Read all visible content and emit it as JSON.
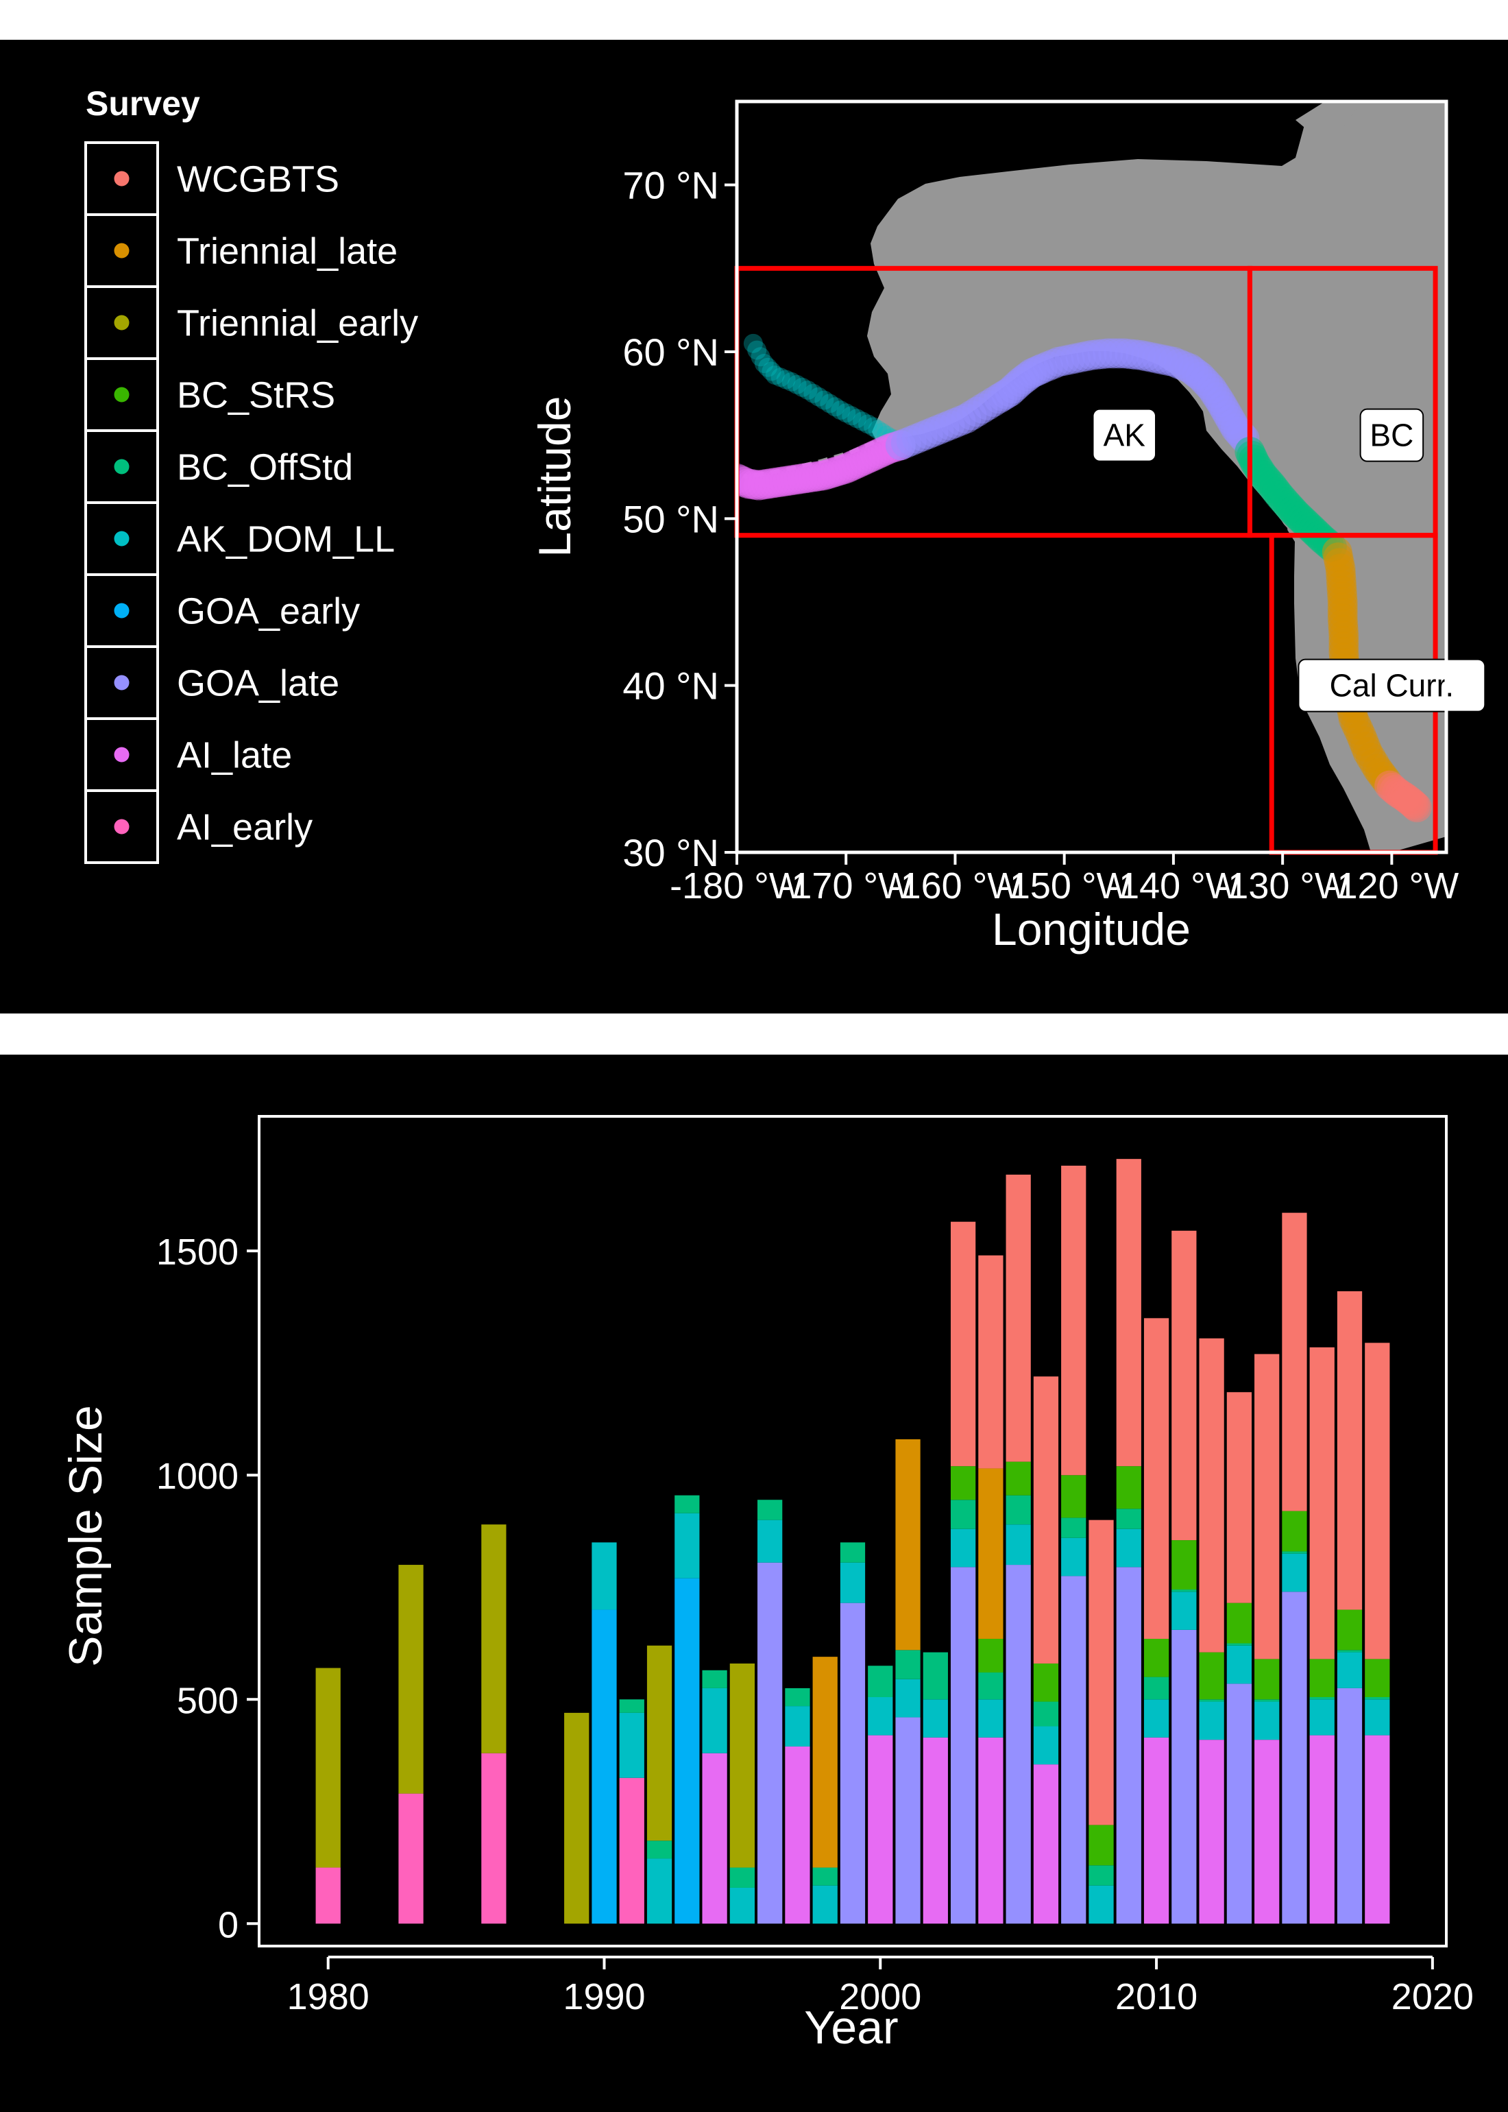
{
  "palette": {
    "WCGBTS": "#F8766D",
    "Triennial_late": "#D89000",
    "Triennial_early": "#A3A500",
    "BC_StRS": "#39B600",
    "BC_OffStd": "#00BF7D",
    "AK_DOM_LL": "#00BFC4",
    "GOA_early": "#00B0F6",
    "GOA_late": "#9590FF",
    "AI_late": "#E76BF3",
    "AI_early": "#FF62BC",
    "background": "#000000",
    "land": "#969696",
    "region_box": "#FF0000"
  },
  "chart_data": [
    {
      "type": "scatter",
      "subtype": "map",
      "xlabel": "Longitude",
      "ylabel": "Latitude",
      "xlim": [
        -180,
        -115
      ],
      "ylim": [
        30,
        75
      ],
      "xticks": [
        -180,
        -170,
        -160,
        -150,
        -140,
        -130,
        -120
      ],
      "xtick_labels": [
        "-180 °W",
        "-170 °W",
        "-160 °W",
        "-150 °W",
        "-140 °W",
        "-130 °W",
        "-120 °W"
      ],
      "yticks": [
        30,
        40,
        50,
        60,
        70
      ],
      "ytick_labels": [
        "30 °N",
        "40 °N",
        "50 °N",
        "60 °N",
        "70 °N"
      ],
      "legend": {
        "title": "Survey",
        "placement": "left",
        "entries": [
          "WCGBTS",
          "Triennial_late",
          "Triennial_early",
          "BC_StRS",
          "BC_OffStd",
          "AK_DOM_LL",
          "GOA_early",
          "GOA_late",
          "AI_late",
          "AI_early"
        ]
      },
      "regions": [
        {
          "label": "AK",
          "lon": [
            -180,
            -133
          ],
          "lat": [
            49,
            65
          ],
          "label_at": [
            -144.5,
            55
          ]
        },
        {
          "label": "BC",
          "lon": [
            -133,
            -116
          ],
          "lat": [
            49,
            65
          ],
          "label_at": [
            -120,
            55
          ]
        },
        {
          "label": "Cal Curr.",
          "lon": [
            -131,
            -116
          ],
          "lat": [
            30,
            49
          ],
          "label_at": [
            -120,
            40
          ]
        }
      ],
      "tracks": [
        {
          "survey": "AK_DOM_LL",
          "points": [
            [
              -178.5,
              60.5
            ],
            [
              -177.5,
              59.3
            ],
            [
              -176.5,
              58.6
            ],
            [
              -175,
              58.2
            ],
            [
              -173.5,
              57.7
            ],
            [
              -172,
              57.1
            ],
            [
              -170.5,
              56.5
            ],
            [
              -169,
              56.0
            ],
            [
              -167.5,
              55.5
            ],
            [
              -166.3,
              55.0
            ],
            [
              -165,
              54.5
            ]
          ]
        },
        {
          "survey": "AI_late",
          "points": [
            [
              -180,
              52.4
            ],
            [
              -179,
              52.1
            ],
            [
              -178,
              52.0
            ],
            [
              -177,
              52.1
            ],
            [
              -176,
              52.2
            ],
            [
              -175,
              52.3
            ],
            [
              -174,
              52.4
            ],
            [
              -173,
              52.5
            ],
            [
              -172,
              52.6
            ],
            [
              -171,
              52.8
            ],
            [
              -170,
              53.0
            ],
            [
              -169,
              53.3
            ],
            [
              -168,
              53.6
            ],
            [
              -167,
              53.9
            ],
            [
              -166,
              54.2
            ],
            [
              -165,
              54.4
            ]
          ]
        },
        {
          "survey": "GOA_late",
          "points": [
            [
              -165,
              54.4
            ],
            [
              -163.5,
              54.8
            ],
            [
              -162,
              55.2
            ],
            [
              -160.5,
              55.6
            ],
            [
              -159,
              56.0
            ],
            [
              -157.5,
              56.6
            ],
            [
              -156,
              57.2
            ],
            [
              -155,
              57.6
            ],
            [
              -154,
              58.2
            ],
            [
              -153,
              58.7
            ],
            [
              -152,
              59.0
            ],
            [
              -150.5,
              59.4
            ],
            [
              -149,
              59.6
            ],
            [
              -147.5,
              59.8
            ],
            [
              -146,
              59.9
            ],
            [
              -144.5,
              59.9
            ],
            [
              -143,
              59.8
            ],
            [
              -141.5,
              59.6
            ],
            [
              -140,
              59.4
            ],
            [
              -138.5,
              59.0
            ],
            [
              -137.5,
              58.5
            ],
            [
              -136.5,
              57.8
            ],
            [
              -135.7,
              57.0
            ],
            [
              -135,
              56.2
            ],
            [
              -134.3,
              55.4
            ],
            [
              -133.5,
              54.8
            ]
          ]
        },
        {
          "survey": "BC_OffStd",
          "points": [
            [
              -133,
              54.0
            ],
            [
              -132.5,
              53.3
            ],
            [
              -131.8,
              52.6
            ],
            [
              -131,
              52.0
            ],
            [
              -130.3,
              51.4
            ],
            [
              -129.5,
              50.8
            ],
            [
              -128.8,
              50.3
            ],
            [
              -128,
              49.8
            ],
            [
              -127.2,
              49.3
            ],
            [
              -126.4,
              48.8
            ],
            [
              -125.5,
              48.3
            ]
          ]
        },
        {
          "survey": "Triennial_late",
          "points": [
            [
              -125,
              48.0
            ],
            [
              -124.7,
              47.0
            ],
            [
              -124.6,
              46.0
            ],
            [
              -124.5,
              45.0
            ],
            [
              -124.5,
              44.0
            ],
            [
              -124.4,
              43.0
            ],
            [
              -124.4,
              42.0
            ],
            [
              -124.3,
              41.0
            ],
            [
              -124.2,
              40.0
            ],
            [
              -123.8,
              39.0
            ],
            [
              -123.5,
              38.0
            ],
            [
              -122.8,
              37.0
            ],
            [
              -122.2,
              36.0
            ],
            [
              -121.3,
              35.0
            ],
            [
              -120.5,
              34.3
            ]
          ]
        },
        {
          "survey": "WCGBTS",
          "points": [
            [
              -120.2,
              34.0
            ],
            [
              -119.5,
              33.6
            ],
            [
              -118.8,
              33.3
            ],
            [
              -118.2,
              33.0
            ],
            [
              -117.7,
              32.7
            ]
          ]
        }
      ]
    },
    {
      "type": "bar",
      "stacked": true,
      "xlabel": "Year",
      "ylabel": "Sample Size",
      "xlim": [
        1977.5,
        2020.5
      ],
      "ylim": [
        -50,
        1800
      ],
      "xticks": [
        1980,
        1990,
        2000,
        2010,
        2020
      ],
      "yticks": [
        0,
        500,
        1000,
        1500
      ],
      "stack_order": [
        "AI_early",
        "AI_late",
        "GOA_late",
        "GOA_early",
        "AK_DOM_LL",
        "BC_OffStd",
        "BC_StRS",
        "Triennial_early",
        "Triennial_late",
        "WCGBTS"
      ],
      "bars": [
        {
          "year": 1980,
          "AI_early": 125,
          "Triennial_early": 445
        },
        {
          "year": 1983,
          "AI_early": 290,
          "Triennial_early": 510
        },
        {
          "year": 1986,
          "AI_early": 380,
          "Triennial_early": 510
        },
        {
          "year": 1989,
          "Triennial_early": 470
        },
        {
          "year": 1990,
          "GOA_early": 700,
          "AK_DOM_LL": 150
        },
        {
          "year": 1991,
          "AI_early": 325,
          "AK_DOM_LL": 145,
          "BC_OffStd": 30
        },
        {
          "year": 1992,
          "AK_DOM_LL": 145,
          "BC_OffStd": 40,
          "Triennial_early": 435
        },
        {
          "year": 1993,
          "GOA_early": 770,
          "AK_DOM_LL": 145,
          "BC_OffStd": 40
        },
        {
          "year": 1994,
          "AI_late": 380,
          "AK_DOM_LL": 145,
          "BC_OffStd": 40
        },
        {
          "year": 1995,
          "AK_DOM_LL": 80,
          "BC_OffStd": 45,
          "Triennial_early": 455
        },
        {
          "year": 1996,
          "GOA_late": 805,
          "AK_DOM_LL": 95,
          "BC_OffStd": 45
        },
        {
          "year": 1997,
          "AI_late": 395,
          "AK_DOM_LL": 90,
          "BC_OffStd": 40
        },
        {
          "year": 1998,
          "AK_DOM_LL": 85,
          "BC_OffStd": 40,
          "Triennial_late": 470
        },
        {
          "year": 1999,
          "GOA_late": 715,
          "AK_DOM_LL": 90,
          "BC_OffStd": 45
        },
        {
          "year": 2000,
          "AI_late": 420,
          "AK_DOM_LL": 85,
          "BC_OffStd": 70
        },
        {
          "year": 2001,
          "GOA_late": 460,
          "AK_DOM_LL": 85,
          "BC_OffStd": 65,
          "Triennial_late": 470
        },
        {
          "year": 2002,
          "AI_late": 415,
          "AK_DOM_LL": 85,
          "BC_OffStd": 105
        },
        {
          "year": 2003,
          "GOA_late": 795,
          "AK_DOM_LL": 85,
          "BC_OffStd": 65,
          "BC_StRS": 75,
          "WCGBTS": 545
        },
        {
          "year": 2004,
          "AI_late": 415,
          "AK_DOM_LL": 85,
          "BC_OffStd": 60,
          "BC_StRS": 75,
          "Triennial_late": 380,
          "WCGBTS": 475
        },
        {
          "year": 2005,
          "GOA_late": 800,
          "AK_DOM_LL": 90,
          "BC_OffStd": 65,
          "BC_StRS": 75,
          "WCGBTS": 640
        },
        {
          "year": 2006,
          "AI_late": 355,
          "AK_DOM_LL": 85,
          "BC_OffStd": 55,
          "BC_StRS": 85,
          "WCGBTS": 640
        },
        {
          "year": 2007,
          "GOA_late": 775,
          "AK_DOM_LL": 85,
          "BC_OffStd": 45,
          "BC_StRS": 95,
          "WCGBTS": 690
        },
        {
          "year": 2008,
          "AK_DOM_LL": 85,
          "BC_OffStd": 45,
          "BC_StRS": 90,
          "WCGBTS": 680
        },
        {
          "year": 2009,
          "GOA_late": 795,
          "AK_DOM_LL": 85,
          "BC_OffStd": 45,
          "BC_StRS": 95,
          "WCGBTS": 685
        },
        {
          "year": 2010,
          "AI_late": 415,
          "AK_DOM_LL": 85,
          "BC_OffStd": 50,
          "BC_StRS": 85,
          "WCGBTS": 715
        },
        {
          "year": 2011,
          "GOA_late": 655,
          "AK_DOM_LL": 85,
          "BC_OffStd": 5,
          "BC_StRS": 110,
          "WCGBTS": 690
        },
        {
          "year": 2012,
          "AI_late": 410,
          "AK_DOM_LL": 85,
          "BC_OffStd": 5,
          "BC_StRS": 105,
          "WCGBTS": 700
        },
        {
          "year": 2013,
          "GOA_late": 535,
          "AK_DOM_LL": 85,
          "BC_OffStd": 5,
          "BC_StRS": 90,
          "WCGBTS": 470
        },
        {
          "year": 2014,
          "AI_late": 410,
          "AK_DOM_LL": 85,
          "BC_OffStd": 5,
          "BC_StRS": 90,
          "WCGBTS": 680
        },
        {
          "year": 2015,
          "GOA_late": 740,
          "AK_DOM_LL": 85,
          "BC_OffStd": 5,
          "BC_StRS": 90,
          "WCGBTS": 665
        },
        {
          "year": 2016,
          "AI_late": 420,
          "AK_DOM_LL": 80,
          "BC_OffStd": 5,
          "BC_StRS": 85,
          "WCGBTS": 695
        },
        {
          "year": 2017,
          "GOA_late": 525,
          "AK_DOM_LL": 80,
          "BC_OffStd": 5,
          "BC_StRS": 90,
          "WCGBTS": 710
        },
        {
          "year": 2018,
          "AI_late": 420,
          "AK_DOM_LL": 80,
          "BC_OffStd": 5,
          "BC_StRS": 85,
          "WCGBTS": 705
        }
      ]
    }
  ]
}
